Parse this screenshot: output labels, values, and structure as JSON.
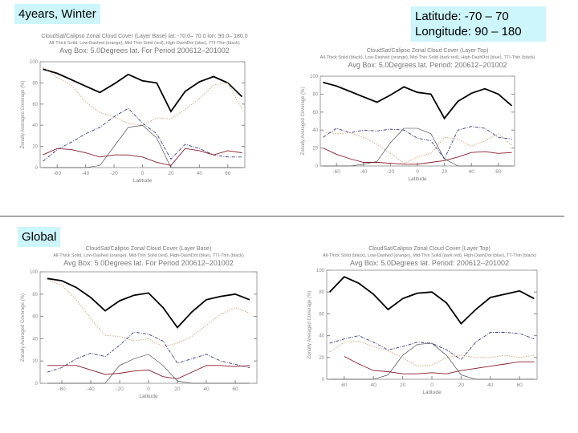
{
  "labels": {
    "top_left": "4years, Winter",
    "region_lat": "Latitude:   -70 – 70",
    "region_lon": "Longitude: 90 – 180",
    "global": "Global"
  },
  "colors": {
    "total": "#000000",
    "low": "#e0a070",
    "mid": "#8b1a2a",
    "high": "#3a3a8c",
    "thin": "#333333"
  },
  "chart_data": [
    {
      "type": "line",
      "title": "CloudSat/Calipso Zonal Cloud Cover (Layer Base) lat: -70.0– 70.0  lon: 90.0– 180.0",
      "subtitle": "All-Thick Solid, Low-Dashed (orange), Mid-Thin Solid (red), High-DashDot (blue), TTI-Thin (black)",
      "subtitle2": "Avg Box: 5.0Degrees lat. For Period 200612–201002",
      "xlabel": "Latitude",
      "ylabel": "Zonally Averaged Coverage (%)",
      "xlim": [
        -72,
        72
      ],
      "ylim": [
        0,
        100
      ],
      "xticks": [
        "-60",
        "-40",
        "-20",
        "0",
        "20",
        "40",
        "60"
      ],
      "yticks": [
        "0",
        "20",
        "40",
        "60",
        "80",
        "100"
      ],
      "x": [
        -70,
        -60,
        -50,
        -40,
        -30,
        -20,
        -10,
        0,
        10,
        20,
        30,
        40,
        50,
        60,
        70
      ],
      "series": [
        {
          "key": "total",
          "values": [
            93,
            89,
            83,
            77,
            71,
            79,
            88,
            82,
            80,
            53,
            72,
            81,
            86,
            80,
            67
          ]
        },
        {
          "key": "low",
          "values": [
            95,
            85,
            78,
            62,
            52,
            48,
            42,
            40,
            47,
            46,
            55,
            65,
            78,
            80,
            55
          ]
        },
        {
          "key": "high",
          "values": [
            6,
            17,
            24,
            32,
            38,
            48,
            56,
            42,
            32,
            8,
            22,
            18,
            12,
            10,
            10
          ]
        },
        {
          "key": "mid",
          "values": [
            12,
            18,
            17,
            14,
            10,
            12,
            12,
            10,
            5,
            2,
            18,
            16,
            12,
            16,
            14
          ]
        },
        {
          "key": "thin",
          "values": [
            0,
            0,
            0,
            0,
            2,
            20,
            38,
            40,
            28,
            0,
            0,
            0,
            0,
            0,
            0
          ]
        }
      ]
    },
    {
      "type": "line",
      "title": "CloudSat/Calipso Zonal Cloud Cover (Layer Top)",
      "subtitle": "All-Thick Solid (black), Low-Dashed (orange), Mid-Thin Solid (dark red), High-DashDot (blue), TTI-Thin (black)",
      "subtitle2": "Avg Box: 5.0Degrees lat. Period: 200612–201002",
      "xlabel": "Latitude",
      "ylabel": "Zonally Averaged Coverage (%)",
      "xlim": [
        -72,
        72
      ],
      "ylim": [
        0,
        100
      ],
      "xticks": [
        "-60",
        "-40",
        "-20",
        "0",
        "20",
        "40",
        "60"
      ],
      "yticks": [
        "0",
        "20",
        "40",
        "60",
        "80",
        "100"
      ],
      "x": [
        -70,
        -60,
        -50,
        -40,
        -30,
        -20,
        -10,
        0,
        10,
        20,
        30,
        40,
        50,
        60,
        70
      ],
      "series": [
        {
          "key": "total",
          "values": [
            93,
            89,
            83,
            77,
            71,
            79,
            88,
            82,
            80,
            53,
            72,
            81,
            86,
            80,
            67
          ]
        },
        {
          "key": "low",
          "values": [
            38,
            36,
            37,
            32,
            24,
            14,
            3,
            10,
            14,
            32,
            30,
            22,
            28,
            36,
            23
          ]
        },
        {
          "key": "high",
          "values": [
            32,
            42,
            37,
            40,
            39,
            41,
            40,
            31,
            28,
            8,
            40,
            44,
            42,
            32,
            30
          ]
        },
        {
          "key": "mid",
          "values": [
            20,
            13,
            8,
            4,
            4,
            3,
            2,
            2,
            4,
            6,
            10,
            15,
            16,
            14,
            15
          ]
        },
        {
          "key": "thin",
          "values": [
            0,
            0,
            0,
            2,
            5,
            26,
            42,
            42,
            36,
            8,
            0,
            0,
            0,
            0,
            0
          ]
        }
      ]
    },
    {
      "type": "line",
      "title": "CloudSat/Calipso Zonal Cloud Cover (Layer Base)",
      "subtitle": "All-Thick Solid, Low-Dashed (orange), Mid-Thin Solid (red), High-DashDot (blue), TTI-Thin (black)",
      "subtitle2": "Avg Box: 5.0Degrees lat. For Period 200612–201002",
      "xlabel": "Latitude",
      "ylabel": "Zonally Averaged Coverage (%)",
      "xlim": [
        -75,
        75
      ],
      "ylim": [
        0,
        100
      ],
      "xticks": [
        "-60",
        "-40",
        "-20",
        "0",
        "20",
        "40",
        "60"
      ],
      "yticks": [
        "0",
        "20",
        "40",
        "60",
        "80",
        "100"
      ],
      "x": [
        -70,
        -60,
        -50,
        -40,
        -30,
        -20,
        -10,
        0,
        10,
        20,
        30,
        40,
        50,
        60,
        70
      ],
      "series": [
        {
          "key": "total",
          "values": [
            94,
            92,
            86,
            77,
            65,
            74,
            79,
            81,
            68,
            50,
            64,
            75,
            78,
            80,
            75
          ]
        },
        {
          "key": "low",
          "values": [
            93,
            88,
            75,
            58,
            43,
            42,
            38,
            40,
            33,
            36,
            42,
            52,
            62,
            68,
            63
          ]
        },
        {
          "key": "high",
          "values": [
            10,
            14,
            22,
            27,
            24,
            34,
            46,
            44,
            38,
            18,
            22,
            26,
            20,
            17,
            14
          ]
        },
        {
          "key": "mid",
          "values": [
            16,
            16,
            16,
            12,
            8,
            9,
            11,
            12,
            6,
            4,
            10,
            16,
            16,
            15,
            16
          ]
        },
        {
          "key": "thin",
          "values": [
            0,
            0,
            0,
            0,
            0,
            16,
            22,
            26,
            16,
            2,
            0,
            0,
            0,
            0,
            0
          ]
        }
      ]
    },
    {
      "type": "line",
      "title": "CloudSat/Calipso Zonal Cloud Cover (Layer Top)",
      "subtitle": "All-Thick Solid (black), Low-Dashed (orange), Mid-Thin Solid (dark red), High-DashDot (blue), TT-Thin (black)",
      "subtitle2": "Avg Box: 5.0Degrees lat. Period: 200612–201002",
      "xlabel": "Latitude",
      "ylabel": "Zonally Averaged Coverage (%)",
      "xlim": [
        -72,
        72
      ],
      "ylim": [
        0,
        100
      ],
      "xticks": [
        "60",
        "40",
        "20",
        "0",
        "20",
        "40",
        "60"
      ],
      "yticks": [
        "0",
        "20",
        "40",
        "60",
        "80",
        "100"
      ],
      "x": [
        -70,
        -60,
        -50,
        -40,
        -30,
        -20,
        -10,
        0,
        10,
        20,
        30,
        40,
        50,
        60,
        70
      ],
      "series": [
        {
          "key": "total",
          "values": [
            80,
            94,
            88,
            78,
            64,
            74,
            79,
            80,
            70,
            51,
            64,
            75,
            78,
            81,
            74
          ]
        },
        {
          "key": "low",
          "values": [
            25,
            34,
            35,
            30,
            26,
            20,
            12,
            13,
            20,
            22,
            20,
            20,
            22,
            20,
            22
          ]
        },
        {
          "key": "high",
          "values": [
            33,
            37,
            40,
            34,
            27,
            30,
            34,
            33,
            27,
            18,
            34,
            43,
            43,
            42,
            37
          ]
        },
        {
          "key": "mid",
          "values": [
            null,
            21,
            14,
            8,
            7,
            5,
            5,
            6,
            5,
            8,
            10,
            12,
            14,
            16,
            16
          ]
        },
        {
          "key": "thin",
          "values": [
            0,
            0,
            0,
            0,
            4,
            22,
            32,
            33,
            22,
            4,
            0,
            0,
            0,
            0,
            0
          ]
        }
      ]
    }
  ]
}
